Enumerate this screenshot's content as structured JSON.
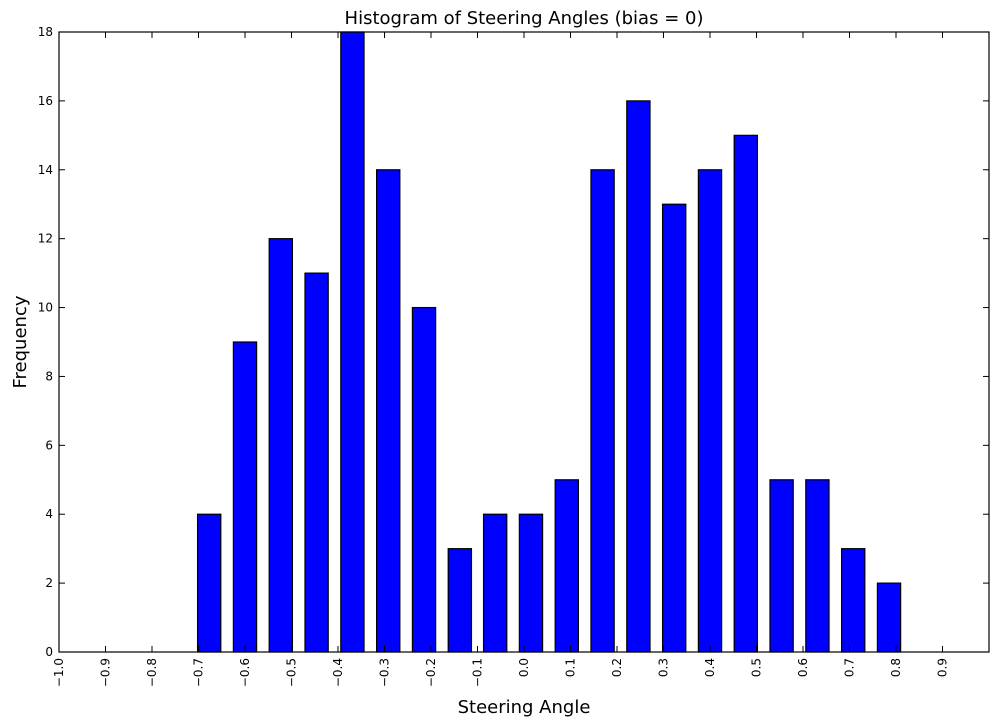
{
  "chart_data": {
    "type": "bar",
    "title": "Histogram of Steering Angles (bias = 0)",
    "xlabel": "Steering Angle",
    "ylabel": "Frequency",
    "xlim": [
      -1.0,
      1.0
    ],
    "ylim": [
      0,
      18
    ],
    "grid": false,
    "bin_width": 0.0769,
    "x_ticks": [
      -1.0,
      -0.9,
      -0.8,
      -0.7,
      -0.6,
      -0.5,
      -0.4,
      -0.3,
      -0.2,
      -0.1,
      0.0,
      0.1,
      0.2,
      0.3,
      0.4,
      0.5,
      0.6,
      0.7,
      0.8,
      0.9
    ],
    "x_tick_labels": [
      "−1.0",
      "−0.9",
      "−0.8",
      "−0.7",
      "−0.6",
      "−0.5",
      "−0.4",
      "−0.3",
      "−0.2",
      "−0.1",
      "0.0",
      "0.1",
      "0.2",
      "0.3",
      "0.4",
      "0.5",
      "0.6",
      "0.7",
      "0.8",
      "0.9"
    ],
    "y_ticks": [
      0,
      2,
      4,
      6,
      8,
      10,
      12,
      14,
      16,
      18
    ],
    "y_tick_labels": [
      "0",
      "2",
      "4",
      "6",
      "8",
      "10",
      "12",
      "14",
      "16",
      "18"
    ],
    "bin_centers": [
      -0.677,
      -0.6,
      -0.523,
      -0.446,
      -0.369,
      -0.292,
      -0.215,
      -0.138,
      -0.062,
      0.015,
      0.092,
      0.169,
      0.246,
      0.323,
      0.4,
      0.477,
      0.554,
      0.631,
      0.708,
      0.785
    ],
    "values": [
      4,
      9,
      12,
      11,
      18,
      14,
      10,
      3,
      4,
      4,
      5,
      14,
      16,
      13,
      14,
      15,
      5,
      5,
      3,
      2
    ],
    "colors": {
      "bar": "#0000ff",
      "edge": "#000000",
      "background": "#ffffff"
    }
  }
}
